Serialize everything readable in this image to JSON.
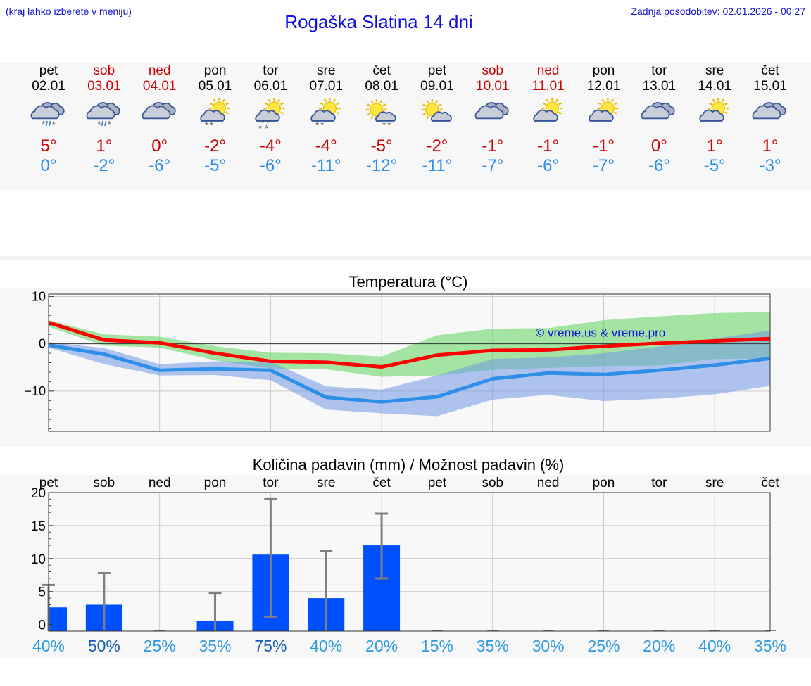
{
  "header": {
    "hint": "(kraj lahko izberete v meniju)",
    "title": "Rogaška Slatina 14 dni",
    "updated": "Zadnja posodobitev: 02.01.2026 - 00:27"
  },
  "colors": {
    "max": "#cc0000",
    "min": "#2e8fe8",
    "weekend": "#cc0000"
  },
  "days": [
    {
      "name": "pet",
      "date": "02.01",
      "weekend": false,
      "icon": "cloud-snow-rain-icon",
      "tmax": "5°",
      "tmin": "0°"
    },
    {
      "name": "sob",
      "date": "03.01",
      "weekend": true,
      "icon": "cloud-snow-rain-icon",
      "tmax": "1°",
      "tmin": "-2°"
    },
    {
      "name": "ned",
      "date": "04.01",
      "weekend": true,
      "icon": "cloudy-icon",
      "tmax": "0°",
      "tmin": "-6°"
    },
    {
      "name": "pon",
      "date": "05.01",
      "weekend": false,
      "icon": "sun-cloud-snow-icon",
      "tmax": "-2°",
      "tmin": "-5°"
    },
    {
      "name": "tor",
      "date": "06.01",
      "weekend": false,
      "icon": "sun-cloud-heavy-snow-icon",
      "tmax": "-4°",
      "tmin": "-6°"
    },
    {
      "name": "sre",
      "date": "07.01",
      "weekend": false,
      "icon": "sun-cloud-snow-icon",
      "tmax": "-4°",
      "tmin": "-11°"
    },
    {
      "name": "čet",
      "date": "08.01",
      "weekend": false,
      "icon": "sun-small-cloud-snow-icon",
      "tmax": "-5°",
      "tmin": "-12°"
    },
    {
      "name": "pet",
      "date": "09.01",
      "weekend": false,
      "icon": "sun-small-cloud-icon",
      "tmax": "-2°",
      "tmin": "-11°"
    },
    {
      "name": "sob",
      "date": "10.01",
      "weekend": true,
      "icon": "cloudy-icon",
      "tmax": "-1°",
      "tmin": "-7°"
    },
    {
      "name": "ned",
      "date": "11.01",
      "weekend": true,
      "icon": "sun-cloud-icon",
      "tmax": "-1°",
      "tmin": "-6°"
    },
    {
      "name": "pon",
      "date": "12.01",
      "weekend": false,
      "icon": "sun-cloud-icon",
      "tmax": "-1°",
      "tmin": "-7°"
    },
    {
      "name": "tor",
      "date": "13.01",
      "weekend": false,
      "icon": "cloudy-icon",
      "tmax": "0°",
      "tmin": "-6°"
    },
    {
      "name": "sre",
      "date": "14.01",
      "weekend": false,
      "icon": "sun-cloud-icon",
      "tmax": "1°",
      "tmin": "-5°"
    },
    {
      "name": "čet",
      "date": "15.01",
      "weekend": false,
      "icon": "cloudy-icon",
      "tmax": "1°",
      "tmin": "-3°"
    }
  ],
  "chart_data": [
    {
      "type": "line",
      "title": "Temperatura (°C)",
      "watermark": "© vreme.us & vreme.pro",
      "x": [
        0,
        1,
        2,
        3,
        4,
        5,
        6,
        7,
        8,
        9,
        10,
        11,
        12,
        13
      ],
      "ylim": [
        -18.5,
        10.5
      ],
      "yticks": [
        10,
        0,
        -10
      ],
      "ytick_labels": [
        "10",
        "0",
        "−10"
      ],
      "series": [
        {
          "name": "max",
          "color": "#ff0000",
          "values": [
            4.5,
            0.8,
            0.2,
            -2,
            -3.7,
            -3.9,
            -4.9,
            -2.4,
            -1.4,
            -1.3,
            -0.5,
            0.1,
            0.6,
            1.1
          ]
        },
        {
          "name": "min",
          "color": "#2e8fe8",
          "values": [
            -0.3,
            -2.2,
            -5.6,
            -5.3,
            -5.6,
            -11.3,
            -12.3,
            -11.2,
            -7.4,
            -6.2,
            -6.5,
            -5.6,
            -4.5,
            -3.1
          ]
        }
      ],
      "bands": [
        {
          "name": "max-range",
          "color": "#5dd35d",
          "upper": [
            5,
            2,
            1.5,
            -0.5,
            -1.9,
            -2,
            -2.7,
            1.8,
            3.2,
            3.3,
            5,
            5.8,
            6.5,
            6.7
          ],
          "lower": [
            3.6,
            -0.4,
            -0.8,
            -3.5,
            -5.2,
            -5.4,
            -7,
            -6.7,
            -5.5,
            -5.1,
            -4.7,
            -4.6,
            -3.2,
            -3.1
          ]
        },
        {
          "name": "min-range",
          "color": "#6f97e6",
          "upper": [
            0.3,
            -0.9,
            -4.3,
            -3.7,
            -3.8,
            -9,
            -9.7,
            -6.7,
            -3.2,
            -2.9,
            -2,
            -0.6,
            1.1,
            2.8
          ]
        },
        {
          "name": "min-range-lower",
          "color": "#6f97e6",
          "lower": [
            -0.8,
            -4.3,
            -6.7,
            -6.6,
            -7.7,
            -13.9,
            -14.7,
            -15.3,
            -11.8,
            -10.8,
            -12.1,
            -11.6,
            -10.7,
            -8.9
          ]
        }
      ]
    },
    {
      "type": "bar",
      "title": "Količina padavin (mm) / Možnost padavin (%)",
      "categories": [
        "pet",
        "sob",
        "ned",
        "pon",
        "tor",
        "sre",
        "čet",
        "pet",
        "sob",
        "ned",
        "pon",
        "tor",
        "sre",
        "čet"
      ],
      "values": [
        2.6,
        3,
        0,
        0.6,
        10.6,
        4,
        12,
        0,
        0,
        0,
        0,
        0,
        0,
        0
      ],
      "error_low": [
        0,
        0,
        0,
        0,
        1.2,
        0,
        7,
        0,
        0,
        0,
        0,
        0,
        0,
        0
      ],
      "error_high": [
        6,
        7.8,
        0,
        4.8,
        19,
        11.2,
        16.8,
        0,
        0,
        0,
        0,
        0,
        0,
        0
      ],
      "probability": [
        "40%",
        "50%",
        "25%",
        "35%",
        "75%",
        "40%",
        "20%",
        "15%",
        "35%",
        "30%",
        "25%",
        "20%",
        "40%",
        "35%"
      ],
      "probability_strong": [
        false,
        true,
        false,
        false,
        true,
        false,
        false,
        false,
        false,
        false,
        false,
        false,
        false,
        false
      ],
      "ylim": [
        -1,
        20
      ],
      "yticks": [
        20,
        15,
        10,
        5,
        0
      ],
      "ytick_labels": [
        "20",
        "15",
        "10",
        "5",
        "0"
      ],
      "bar_color": "#0050ff"
    }
  ]
}
